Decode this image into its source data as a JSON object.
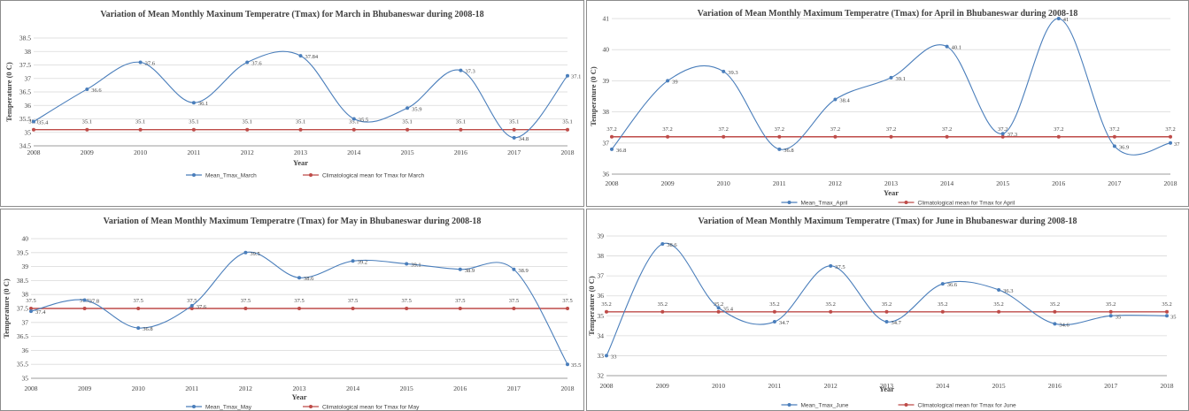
{
  "colors": {
    "series1": "#4a7ebb",
    "series2": "#be4b48",
    "grid": "#d9d9d9",
    "axis": "#868686"
  },
  "chart_data": [
    {
      "type": "line",
      "title": "Variation of Mean Monthly Maxinum Temperatre (Tmax) for March in Bhubaneswar during 2008-18",
      "xlabel": "Year",
      "ylabel": "Temperature (0 C)",
      "categories": [
        "2008",
        "2009",
        "2010",
        "2011",
        "2012",
        "2013",
        "2014",
        "2015",
        "2016",
        "2017",
        "2018"
      ],
      "ylim": [
        34.5,
        38.5
      ],
      "yticks": [
        "34.5",
        "35",
        "35.5",
        "36",
        "36.5",
        "37",
        "37.5",
        "38",
        "38.5"
      ],
      "series": [
        {
          "name": "Mean_Tmax_March",
          "values": [
            35.4,
            36.6,
            37.6,
            36.1,
            37.6,
            37.84,
            35.5,
            35.9,
            37.3,
            34.8,
            37.1
          ]
        },
        {
          "name": "Climatological mean for Tmax for March",
          "values": [
            35.1,
            35.1,
            35.1,
            35.1,
            35.1,
            35.1,
            35.1,
            35.1,
            35.1,
            35.1,
            35.1
          ]
        }
      ]
    },
    {
      "type": "line",
      "title": "Variation of Mean Monthly Maximum Temperatre (Tmax) for April in Bhubaneswar during 2008-18",
      "xlabel": "Year",
      "ylabel": "Temperature (0 C)",
      "categories": [
        "2008",
        "2009",
        "2010",
        "2011",
        "2012",
        "2013",
        "2014",
        "2015",
        "2016",
        "2017",
        "2018"
      ],
      "ylim": [
        36,
        41
      ],
      "yticks": [
        "36",
        "37",
        "38",
        "39",
        "40",
        "41"
      ],
      "series": [
        {
          "name": "Mean_Tmax_April",
          "values": [
            36.8,
            39,
            39.3,
            36.8,
            38.4,
            39.1,
            40.1,
            37.3,
            41,
            36.9,
            37
          ]
        },
        {
          "name": "Climatological mean for Tmax for April",
          "values": [
            37.2,
            37.2,
            37.2,
            37.2,
            37.2,
            37.2,
            37.2,
            37.2,
            37.2,
            37.2,
            37.2
          ]
        }
      ]
    },
    {
      "type": "line",
      "title": "Variation of Mean Monthly Maximum Temperatre (Tmax) for May in Bhubaneswar during 2008-18",
      "xlabel": "Year",
      "ylabel": "Temperature (0 C)",
      "categories": [
        "2008",
        "2009",
        "2010",
        "2011",
        "2012",
        "2013",
        "2014",
        "2015",
        "2016",
        "2017",
        "2018"
      ],
      "ylim": [
        35,
        40
      ],
      "yticks": [
        "35",
        "35.5",
        "36",
        "36.5",
        "37",
        "37.5",
        "38",
        "38.5",
        "39",
        "39.5",
        "40"
      ],
      "series": [
        {
          "name": "Mean_Tmax_May",
          "values": [
            37.4,
            37.8,
            36.8,
            37.6,
            39.5,
            38.6,
            39.2,
            39.1,
            38.9,
            38.9,
            35.5
          ]
        },
        {
          "name": "Climatological mean for Tmax for May",
          "values": [
            37.5,
            37.5,
            37.5,
            37.5,
            37.5,
            37.5,
            37.5,
            37.5,
            37.5,
            37.5,
            37.5
          ]
        }
      ]
    },
    {
      "type": "line",
      "title": "Variation of Mean Monthly Maximum Temperatre (Tmax) for June in Bhubaneswar during 2008-18",
      "xlabel": "Year",
      "ylabel": "Temperature (0 C)",
      "categories": [
        "2008",
        "2009",
        "2010",
        "2011",
        "2012",
        "2013",
        "2014",
        "2015",
        "2016",
        "2017",
        "2018"
      ],
      "ylim": [
        32,
        39
      ],
      "yticks": [
        "32",
        "33",
        "34",
        "35",
        "36",
        "37",
        "38",
        "39"
      ],
      "series": [
        {
          "name": "Mean_Tmax_June",
          "values": [
            33,
            38.6,
            35.4,
            34.7,
            37.5,
            34.7,
            36.6,
            36.3,
            34.6,
            35,
            35
          ]
        },
        {
          "name": "Climatological mean for Tmax for June",
          "values": [
            35.2,
            35.2,
            35.2,
            35.2,
            35.2,
            35.2,
            35.2,
            35.2,
            35.2,
            35.2,
            35.2
          ]
        }
      ]
    }
  ]
}
